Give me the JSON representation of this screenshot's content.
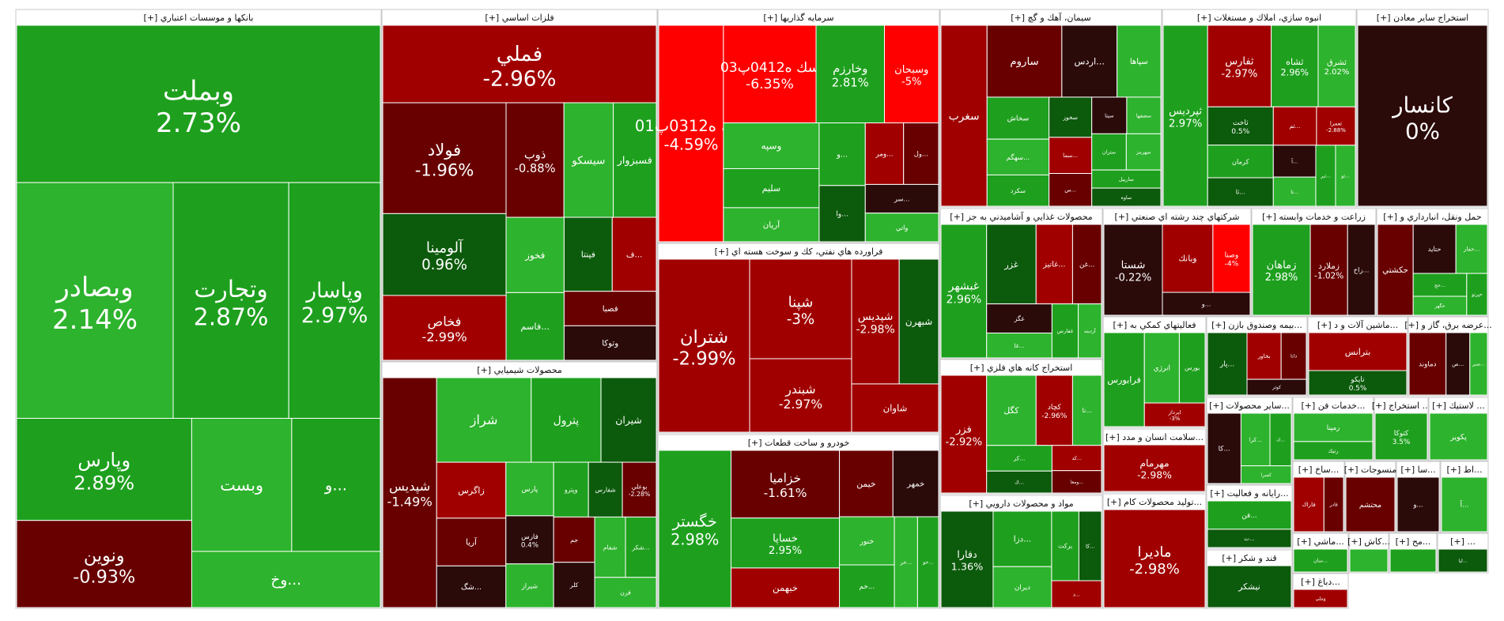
{
  "chart_data": {
    "type": "treemap",
    "title": "",
    "colors": {
      "strong_up": "#1ea01e",
      "up": "#2db32d",
      "up_dark": "#0c5a0c",
      "neutral": "#2b0a0a",
      "down": "#a00000",
      "down_dark": "#680000",
      "strong_down": "#ff0000"
    },
    "sectors": [
      {
        "name": "بانكها و موسسات اعتباري [+]",
        "stocks": [
          {
            "name": "وبملت",
            "change": 2.73
          },
          {
            "name": "وبصادر",
            "change": 2.14
          },
          {
            "name": "وتجارت",
            "change": 2.87
          },
          {
            "name": "وپاسار",
            "change": 2.97
          },
          {
            "name": "وپارس",
            "change": 2.89
          },
          {
            "name": "ونوین",
            "change": -0.93
          },
          {
            "name": "وبست",
            "change": null
          },
          {
            "name": "...و",
            "change": null
          },
          {
            "name": "...وخ",
            "change": null
          }
        ]
      },
      {
        "name": "فلزات اساسي [+]",
        "stocks": [
          {
            "name": "فملي",
            "change": -2.96
          },
          {
            "name": "فولاد",
            "change": -1.96
          },
          {
            "name": "آلومينا",
            "change": 0.96
          },
          {
            "name": "فخاص",
            "change": -2.99
          },
          {
            "name": "ذوب",
            "change": -0.88
          },
          {
            "name": "سيسكو",
            "change": null
          },
          {
            "name": "فسبزوار",
            "change": null
          },
          {
            "name": "فخوز",
            "change": null
          },
          {
            "name": "...فاسم",
            "change": null
          },
          {
            "name": "فپنتا",
            "change": null
          },
          {
            "name": "...ف",
            "change": null
          },
          {
            "name": "فصبا",
            "change": null
          },
          {
            "name": "وتوكا",
            "change": null
          }
        ]
      },
      {
        "name": "سرمايه گذاريها [+]",
        "stocks": [
          {
            "name": "سك ه0312پ01",
            "change": -4.59
          },
          {
            "name": "سك ه0412پ03",
            "change": -6.35
          },
          {
            "name": "وخارزم",
            "change": 2.81
          },
          {
            "name": "وسبحان",
            "change": -5.0
          },
          {
            "name": "وسپه",
            "change": null
          },
          {
            "name": "سليم",
            "change": null
          },
          {
            "name": "آريان",
            "change": null
          },
          {
            "name": "...و",
            "change": null
          },
          {
            "name": "...وا",
            "change": null
          },
          {
            "name": "...ومر",
            "change": null
          },
          {
            "name": "...ول",
            "change": null
          },
          {
            "name": "...سر",
            "change": null
          },
          {
            "name": "واتي",
            "change": null
          }
        ]
      },
      {
        "name": "سيمان، آهك و گچ [+]",
        "stocks": [
          {
            "name": "سغرب",
            "change": null
          },
          {
            "name": "ساروم",
            "change": null
          },
          {
            "name": "...اردس",
            "change": null
          },
          {
            "name": "سپاها",
            "change": null
          },
          {
            "name": "سخاش",
            "change": null
          },
          {
            "name": "...سهگم",
            "change": null
          },
          {
            "name": "سكرد",
            "change": null
          },
          {
            "name": "سخوز",
            "change": null
          },
          {
            "name": "...سما",
            "change": null
          },
          {
            "name": "...س",
            "change": null
          },
          {
            "name": "سيتا",
            "change": null
          },
          {
            "name": "سصفها",
            "change": null
          },
          {
            "name": "ستران",
            "change": null
          },
          {
            "name": "سهرمز",
            "change": null
          },
          {
            "name": "ساربيل",
            "change": null
          },
          {
            "name": "ساوه",
            "change": null
          }
        ]
      },
      {
        "name": "انبوه سازي، املاك و مستغلات [+]",
        "stocks": [
          {
            "name": "ثپردیس",
            "change": 2.97
          },
          {
            "name": "ثفارس",
            "change": -2.97
          },
          {
            "name": "ثشاه",
            "change": 2.96
          },
          {
            "name": "ثشرق",
            "change": 2.02
          },
          {
            "name": "ثاخت",
            "change": 0.5
          },
          {
            "name": "كرمان",
            "change": null
          },
          {
            "name": "...ثا",
            "change": null
          },
          {
            "name": "...ثم",
            "change": null
          },
          {
            "name": "ثعمرا",
            "change": -2.88
          },
          {
            "name": "...آ",
            "change": null
          },
          {
            "name": "...تا",
            "change": null
          },
          {
            "name": "...ثبر",
            "change": null
          },
          {
            "name": "...ثو",
            "change": null
          }
        ]
      },
      {
        "name": "استخراج ساير معادن [+]",
        "stocks": [
          {
            "name": "كانسار",
            "change": 0
          }
        ]
      },
      {
        "name": "فراورده هاي نفتي، كك و سوخت هسته اي [+]",
        "stocks": [
          {
            "name": "شتران",
            "change": -2.99
          },
          {
            "name": "شپنا",
            "change": -3.0
          },
          {
            "name": "شبندر",
            "change": -2.97
          },
          {
            "name": "شپديس",
            "change": -2.98
          },
          {
            "name": "شبهرن",
            "change": null
          },
          {
            "name": "شاوان",
            "change": null
          }
        ]
      },
      {
        "name": "محصولات شيميايي [+]",
        "stocks": [
          {
            "name": "شپديس",
            "change": -1.49
          },
          {
            "name": "شراز",
            "change": null
          },
          {
            "name": "پترول",
            "change": null
          },
          {
            "name": "شيران",
            "change": null
          },
          {
            "name": "زاگرس",
            "change": null
          },
          {
            "name": "آريا",
            "change": null
          },
          {
            "name": "...شگ",
            "change": null
          },
          {
            "name": "پارس",
            "change": null
          },
          {
            "name": "فارس",
            "change": 0.4
          },
          {
            "name": "شيراز",
            "change": null
          },
          {
            "name": "وپترو",
            "change": null
          },
          {
            "name": "شفارس",
            "change": null
          },
          {
            "name": "بوعلي",
            "change": -2.28
          },
          {
            "name": "جم",
            "change": null
          },
          {
            "name": "كلر",
            "change": null
          },
          {
            "name": "شفام",
            "change": null
          },
          {
            "name": "...شكر",
            "change": null
          },
          {
            "name": "قرن",
            "change": null
          }
        ]
      },
      {
        "name": "خودرو و ساخت قطعات [+]",
        "stocks": [
          {
            "name": "خگستر",
            "change": 2.98
          },
          {
            "name": "خزاميا",
            "change": -1.61
          },
          {
            "name": "خساپا",
            "change": 2.95
          },
          {
            "name": "خبهمن",
            "change": null
          },
          {
            "name": "خيمن",
            "change": null
          },
          {
            "name": "خمهر",
            "change": null
          },
          {
            "name": "خنور",
            "change": null
          },
          {
            "name": "...خم",
            "change": null
          },
          {
            "name": "...خر",
            "change": null
          },
          {
            "name": "...خو",
            "change": null
          }
        ]
      },
      {
        "name": "محصولات غذايي و آشاميدني به جز [+]",
        "stocks": [
          {
            "name": "غبشهر",
            "change": 2.96
          },
          {
            "name": "غزر",
            "change": null
          },
          {
            "name": "...غاتيز",
            "change": null
          },
          {
            "name": "...غن",
            "change": null
          },
          {
            "name": "غگز",
            "change": null
          },
          {
            "name": "...غا",
            "change": null
          },
          {
            "name": "غفارس",
            "change": null
          },
          {
            "name": "آردينه",
            "change": null
          }
        ]
      },
      {
        "name": "شركتهاي چند رشته اي صنعتي [+]",
        "stocks": [
          {
            "name": "شستا",
            "change": -0.22
          },
          {
            "name": "وبانك",
            "change": null
          },
          {
            "name": "وصنا",
            "change": -4.0
          },
          {
            "name": "...و",
            "change": null
          }
        ]
      },
      {
        "name": "زراعت و خدمات وابسته [+]",
        "stocks": [
          {
            "name": "زماهان",
            "change": 2.98
          },
          {
            "name": "زملارد",
            "change": -1.02
          },
          {
            "name": "...زاخ",
            "change": null
          }
        ]
      },
      {
        "name": "حمل ونقل، انبارداري و [+]",
        "stocks": [
          {
            "name": "حكشتي",
            "change": null
          },
          {
            "name": "حتايد",
            "change": null
          },
          {
            "name": "...حفار",
            "change": null
          },
          {
            "name": "...حج",
            "change": null
          },
          {
            "name": "حگهر",
            "change": null
          },
          {
            "name": "حپرتو",
            "change": null
          }
        ]
      },
      {
        "name": "استخراج كانه هاي فلزي [+]",
        "stocks": [
          {
            "name": "فزر",
            "change": -2.92
          },
          {
            "name": "كگل",
            "change": null
          },
          {
            "name": "كچاد",
            "change": -2.96
          },
          {
            "name": "...تا",
            "change": null
          },
          {
            "name": "...كر",
            "change": null
          },
          {
            "name": "...ك",
            "change": null
          },
          {
            "name": "...كد",
            "change": null
          },
          {
            "name": "...ومعا",
            "change": null
          }
        ]
      },
      {
        "name": "مواد و محصولات دارويي [+]",
        "stocks": [
          {
            "name": "دفارا",
            "change": 1.36
          },
          {
            "name": "...دزا",
            "change": null
          },
          {
            "name": "ديران",
            "change": null
          },
          {
            "name": "بركت",
            "change": null
          },
          {
            "name": "...كا",
            "change": null
          },
          {
            "name": "...د",
            "change": null
          }
        ]
      },
      {
        "name": "فعاليتهاي كمكي به [+]",
        "stocks": [
          {
            "name": "فرابورس",
            "change": null
          },
          {
            "name": "انرژي",
            "change": null
          },
          {
            "name": "بورس",
            "change": null
          },
          {
            "name": "اپرداز",
            "change": -3.0
          }
        ]
      },
      {
        "name": "...سلامت انسان و مدد [+]",
        "stocks": [
          {
            "name": "مهرمام",
            "change": -2.98
          }
        ]
      },
      {
        "name": "...توليد محصولات كام [+]",
        "stocks": [
          {
            "name": "ماديرا",
            "change": -2.98
          }
        ]
      },
      {
        "name": "...بيمه وصندوق بازن [+]",
        "stocks": [
          {
            "name": "...پار",
            "change": null
          },
          {
            "name": "بخاور",
            "change": null
          },
          {
            "name": "دانا",
            "change": null
          },
          {
            "name": "كوثر",
            "change": null
          }
        ]
      },
      {
        "name": "...ماشين آلات و د [+]",
        "stocks": [
          {
            "name": "بترانس",
            "change": null
          },
          {
            "name": "تاپكو",
            "change": 0.5
          }
        ]
      },
      {
        "name": "...عرضه برق، گاز و [+]",
        "stocks": [
          {
            "name": "دماوند",
            "change": null
          },
          {
            "name": "...ص",
            "change": null
          },
          {
            "name": "...صبر",
            "change": null
          }
        ]
      },
      {
        "name": "...ساير محصولات [+]",
        "stocks": [
          {
            "name": "...كا",
            "change": null
          },
          {
            "name": "...كرا",
            "change": null
          },
          {
            "name": "...ك",
            "change": null
          },
          {
            "name": "كسرا",
            "change": null
          }
        ]
      },
      {
        "name": "...خدمات فن [+]",
        "stocks": [
          {
            "name": "رمپنا",
            "change": null
          },
          {
            "name": "رتيك",
            "change": null
          }
        ]
      },
      {
        "name": "... استخراج [+]",
        "stocks": [
          {
            "name": "كتوكا",
            "change": 3.5
          }
        ]
      },
      {
        "name": "... لاستيك [+]",
        "stocks": [
          {
            "name": "پكوير",
            "change": null
          }
        ]
      },
      {
        "name": "...رايانه و فعاليت [+]",
        "stocks": [
          {
            "name": "...فن",
            "change": null
          },
          {
            "name": "...ت",
            "change": null
          }
        ]
      },
      {
        "name": "قند و شكر [+]",
        "stocks": [
          {
            "name": "نيشكر",
            "change": null
          }
        ]
      },
      {
        "name": "...ساخ [+]",
        "stocks": [
          {
            "name": "فاراك",
            "change": null
          },
          {
            "name": "فادر",
            "change": null
          }
        ]
      },
      {
        "name": "منسوجات [+]",
        "stocks": [
          {
            "name": "محتشم",
            "change": null
          }
        ]
      },
      {
        "name": "...سا [+]",
        "stocks": [
          {
            "name": "...و",
            "change": null
          }
        ]
      },
      {
        "name": "...اط [+]",
        "stocks": [
          {
            "name": "...آ",
            "change": null
          }
        ]
      },
      {
        "name": "...ماشي [+]",
        "stocks": [
          {
            "name": "...سان",
            "change": null
          }
        ]
      },
      {
        "name": "...كاش [+]",
        "stocks": []
      },
      {
        "name": "...مح [+]",
        "stocks": []
      },
      {
        "name": "... [+]",
        "stocks": [
          {
            "name": "...ليا",
            "change": null
          }
        ]
      },
      {
        "name": "...دباغ [+]",
        "stocks": [
          {
            "name": "وملي",
            "change": null
          }
        ]
      }
    ]
  }
}
